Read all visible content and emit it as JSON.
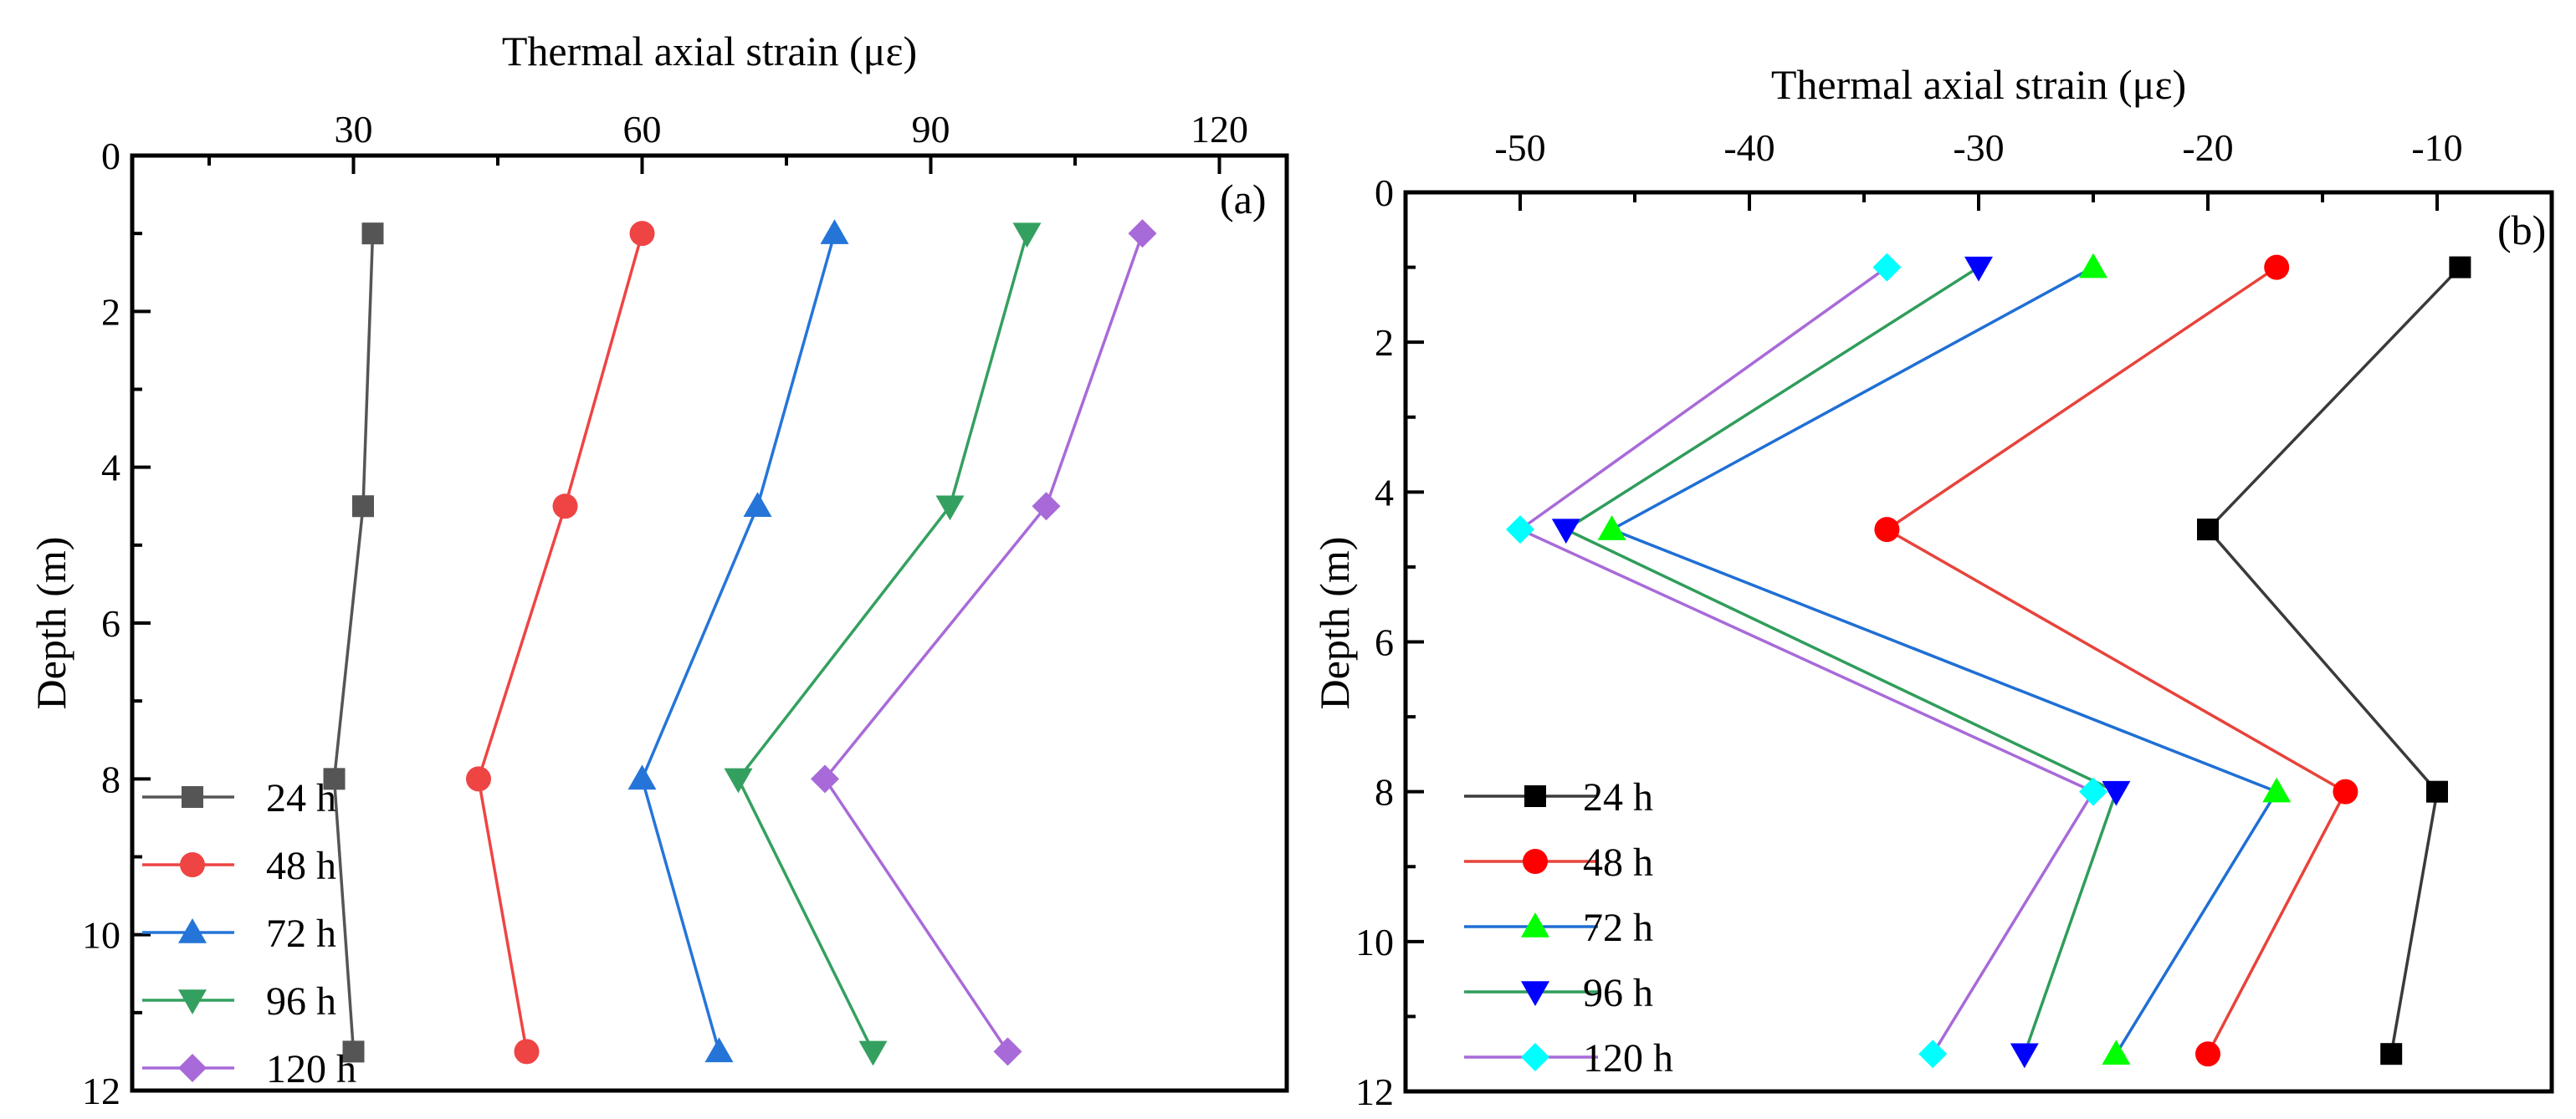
{
  "colors": {
    "24 h": "#3a3a3a",
    "48 h": "#e8433b",
    "72 h": "#1f6fd4",
    "96 h": "#2f9d5b",
    "120 h": "#a86ad8"
  },
  "chart_data": [
    {
      "type": "line",
      "panel_label": "(a)",
      "xlabel": "Thermal axial strain (με)",
      "ylabel": "Depth (m)",
      "x_axis_position": "top",
      "y_inverted": true,
      "xlim": [
        7,
        127
      ],
      "ylim": [
        0,
        12
      ],
      "xticks": [
        30,
        60,
        90,
        120
      ],
      "yticks": [
        0,
        2,
        4,
        6,
        8,
        10,
        12
      ],
      "legend_position": "bottom-left",
      "depths": [
        1,
        4.5,
        8,
        11.5
      ],
      "series": [
        {
          "name": "24 h",
          "marker": "square",
          "color": "#555555",
          "line_color": "#555555",
          "values": [
            32,
            31,
            28,
            30
          ]
        },
        {
          "name": "48 h",
          "marker": "circle",
          "color": "#ef4444",
          "line_color": "#ef4444",
          "values": [
            60,
            52,
            43,
            48
          ]
        },
        {
          "name": "72 h",
          "marker": "triangle-up",
          "color": "#2575d8",
          "line_color": "#2575d8",
          "values": [
            80,
            72,
            60,
            68
          ]
        },
        {
          "name": "96 h",
          "marker": "triangle-down",
          "color": "#34a060",
          "line_color": "#34a060",
          "values": [
            100,
            92,
            70,
            84
          ]
        },
        {
          "name": "120 h",
          "marker": "diamond",
          "color": "#a86ad8",
          "line_color": "#a86ad8",
          "values": [
            112,
            102,
            79,
            98
          ]
        }
      ]
    },
    {
      "type": "line",
      "panel_label": "(b)",
      "xlabel": "Thermal axial strain (με)",
      "ylabel": "Depth (m)",
      "x_axis_position": "top",
      "y_inverted": true,
      "xlim": [
        -55,
        -5
      ],
      "ylim": [
        0,
        12
      ],
      "xticks": [
        -50,
        -40,
        -30,
        -20,
        -10
      ],
      "yticks": [
        0,
        2,
        4,
        6,
        8,
        10,
        12
      ],
      "legend_position": "bottom-left",
      "depths": [
        1,
        4.5,
        8,
        11.5
      ],
      "series": [
        {
          "name": "24 h",
          "marker": "square",
          "color": "#000000",
          "line_color": "#3a3a3a",
          "values": [
            -9,
            -20,
            -10,
            -12
          ]
        },
        {
          "name": "48 h",
          "marker": "circle",
          "color": "#ff0000",
          "line_color": "#e8433b",
          "values": [
            -17,
            -34,
            -14,
            -20
          ]
        },
        {
          "name": "72 h",
          "marker": "triangle-up",
          "color": "#00ff00",
          "line_color": "#1f6fd4",
          "values": [
            -25,
            -46,
            -17,
            -24
          ]
        },
        {
          "name": "96 h",
          "marker": "triangle-down",
          "color": "#0000ff",
          "line_color": "#2f9d5b",
          "values": [
            -30,
            -48,
            -24,
            -28
          ]
        },
        {
          "name": "120 h",
          "marker": "diamond",
          "color": "#00ffff",
          "line_color": "#a86ad8",
          "values": [
            -34,
            -50,
            -25,
            -32
          ]
        }
      ]
    }
  ]
}
